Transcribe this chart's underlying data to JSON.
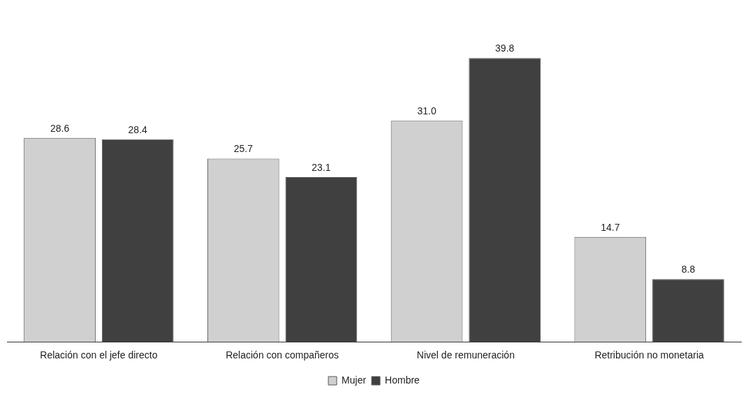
{
  "chart_data": {
    "type": "bar",
    "categories": [
      "Relación con el jefe directo",
      "Relación con compañeros",
      "Nivel de remuneración",
      "Retribución no monetaria"
    ],
    "series": [
      {
        "name": "Mujer",
        "color": "#d0d0d0",
        "values": [
          28.6,
          25.7,
          31.0,
          14.7
        ],
        "value_labels": [
          "28.6",
          "25.7",
          "31.0",
          "14.7"
        ]
      },
      {
        "name": "Hombre",
        "color": "#404040",
        "values": [
          28.4,
          23.1,
          39.8,
          8.8
        ],
        "value_labels": [
          "28.4",
          "23.1",
          "39.8",
          "8.8"
        ]
      }
    ],
    "legend": "bottom"
  }
}
